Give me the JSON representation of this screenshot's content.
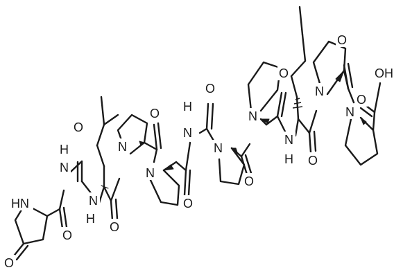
{
  "colors": {
    "bond": "#1a1a1a",
    "background": "#ffffff"
  },
  "atoms": {
    "hn_pyro": "HN",
    "o_pyro": "O",
    "o_pyro_amide": "O",
    "h_gly1": "H",
    "n_gly1": "N",
    "o_gly1": "O",
    "n_leu": "N",
    "h_leu": "H",
    "o_leu": "O",
    "n_pro1": "N",
    "o_pro1": "O",
    "n_pro2": "N",
    "o_pro2": "O",
    "h_gly2": "H",
    "n_gly2": "N",
    "o_gly2": "O",
    "n_pro3": "N",
    "o_pro3": "O",
    "n_pro4": "N",
    "o_pro4": "O",
    "n_ile": "N",
    "h_ile": "H",
    "o_ile": "O",
    "n_pro5": "N",
    "o_pro5": "O",
    "n_pro6": "N",
    "o_acid": "O",
    "oh_acid": "OH"
  }
}
